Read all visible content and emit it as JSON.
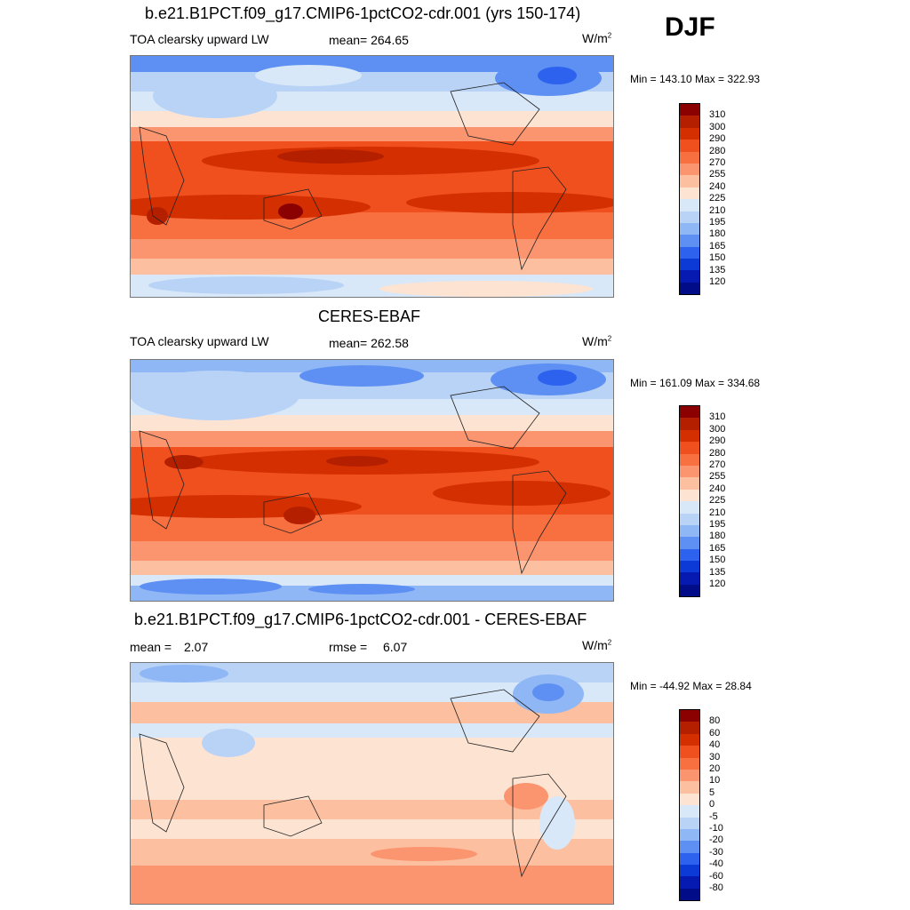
{
  "season": "DJF",
  "units_base": "W/m",
  "units_exp": "2",
  "panels": {
    "p1": {
      "title": "b.e21.B1PCT.f09_g17.CMIP6-1pctCO2-cdr.001 (yrs 150-174)",
      "variable": "TOA clearsky upward LW",
      "mean": "mean= 264.65",
      "minmax": "Min = 143.10 Max = 322.93"
    },
    "p2": {
      "title": "CERES-EBAF",
      "variable": "TOA clearsky upward LW",
      "mean": "mean= 262.58",
      "minmax": "Min = 161.09 Max = 334.68"
    },
    "p3": {
      "title": "b.e21.B1PCT.f09_g17.CMIP6-1pctCO2-cdr.001 - CERES-EBAF",
      "mean_label": "mean =",
      "mean_value": "2.07",
      "rmse_label": "rmse =",
      "rmse_value": "6.07",
      "minmax": "Min = -44.92 Max =  28.84"
    }
  },
  "colorbars": {
    "abs_levels": [
      "310",
      "300",
      "290",
      "280",
      "270",
      "255",
      "240",
      "225",
      "210",
      "195",
      "180",
      "165",
      "150",
      "135",
      "120"
    ],
    "abs_colors": [
      "#8b0000",
      "#b41f00",
      "#d42f00",
      "#f0501e",
      "#f86f40",
      "#fb9570",
      "#fcc0a0",
      "#fde3d2",
      "#d9e8f8",
      "#b9d3f6",
      "#8fb6f5",
      "#5d90f2",
      "#2d62ee",
      "#0c3ad6",
      "#0619b0",
      "#000c88"
    ],
    "diff_levels": [
      "80",
      "60",
      "40",
      "30",
      "20",
      "10",
      "5",
      "0",
      "-5",
      "-10",
      "-20",
      "-30",
      "-40",
      "-60",
      "-80"
    ],
    "diff_colors": [
      "#8b0000",
      "#b41f00",
      "#d42f00",
      "#f0501e",
      "#f86f40",
      "#fb9570",
      "#fcc0a0",
      "#fde3d2",
      "#d9e8f8",
      "#b9d3f6",
      "#8fb6f5",
      "#5d90f2",
      "#2d62ee",
      "#0c3ad6",
      "#0619b0",
      "#000c88"
    ]
  },
  "chart_data": [
    {
      "type": "heatmap",
      "title": "b.e21.B1PCT.f09_g17.CMIP6-1pctCO2-cdr.001 (yrs 150-174)",
      "subtitle": "TOA clearsky upward LW",
      "mean": 264.65,
      "min": 143.1,
      "max": 322.93,
      "contour_levels": [
        120,
        135,
        150,
        165,
        180,
        195,
        210,
        225,
        240,
        255,
        270,
        280,
        290,
        300,
        310
      ]
    },
    {
      "type": "heatmap",
      "title": "CERES-EBAF",
      "subtitle": "TOA clearsky upward LW",
      "mean": 262.58,
      "min": 161.09,
      "max": 334.68,
      "contour_levels": [
        120,
        135,
        150,
        165,
        180,
        195,
        210,
        225,
        240,
        255,
        270,
        280,
        290,
        300,
        310
      ]
    },
    {
      "type": "heatmap",
      "title": "b.e21.B1PCT.f09_g17.CMIP6-1pctCO2-cdr.001 - CERES-EBAF",
      "mean": 2.07,
      "rmse": 6.07,
      "min": -44.92,
      "max": 28.84,
      "contour_levels": [
        -80,
        -60,
        -40,
        -30,
        -20,
        -10,
        -5,
        0,
        5,
        10,
        20,
        30,
        40,
        60,
        80
      ]
    }
  ]
}
